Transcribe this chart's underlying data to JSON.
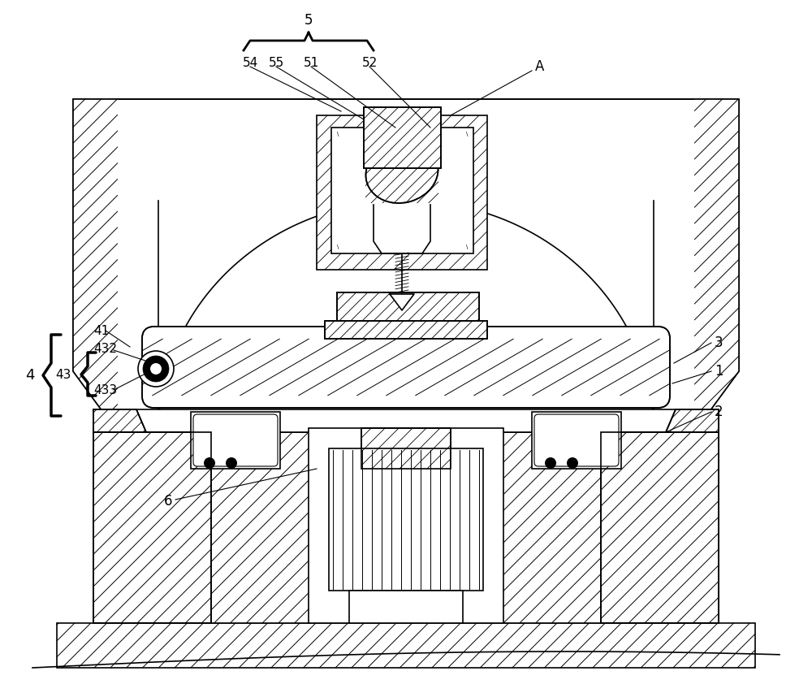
{
  "figsize": [
    10.0,
    8.42
  ],
  "dpi": 100,
  "bg_color": "#ffffff",
  "line_color": "#000000"
}
